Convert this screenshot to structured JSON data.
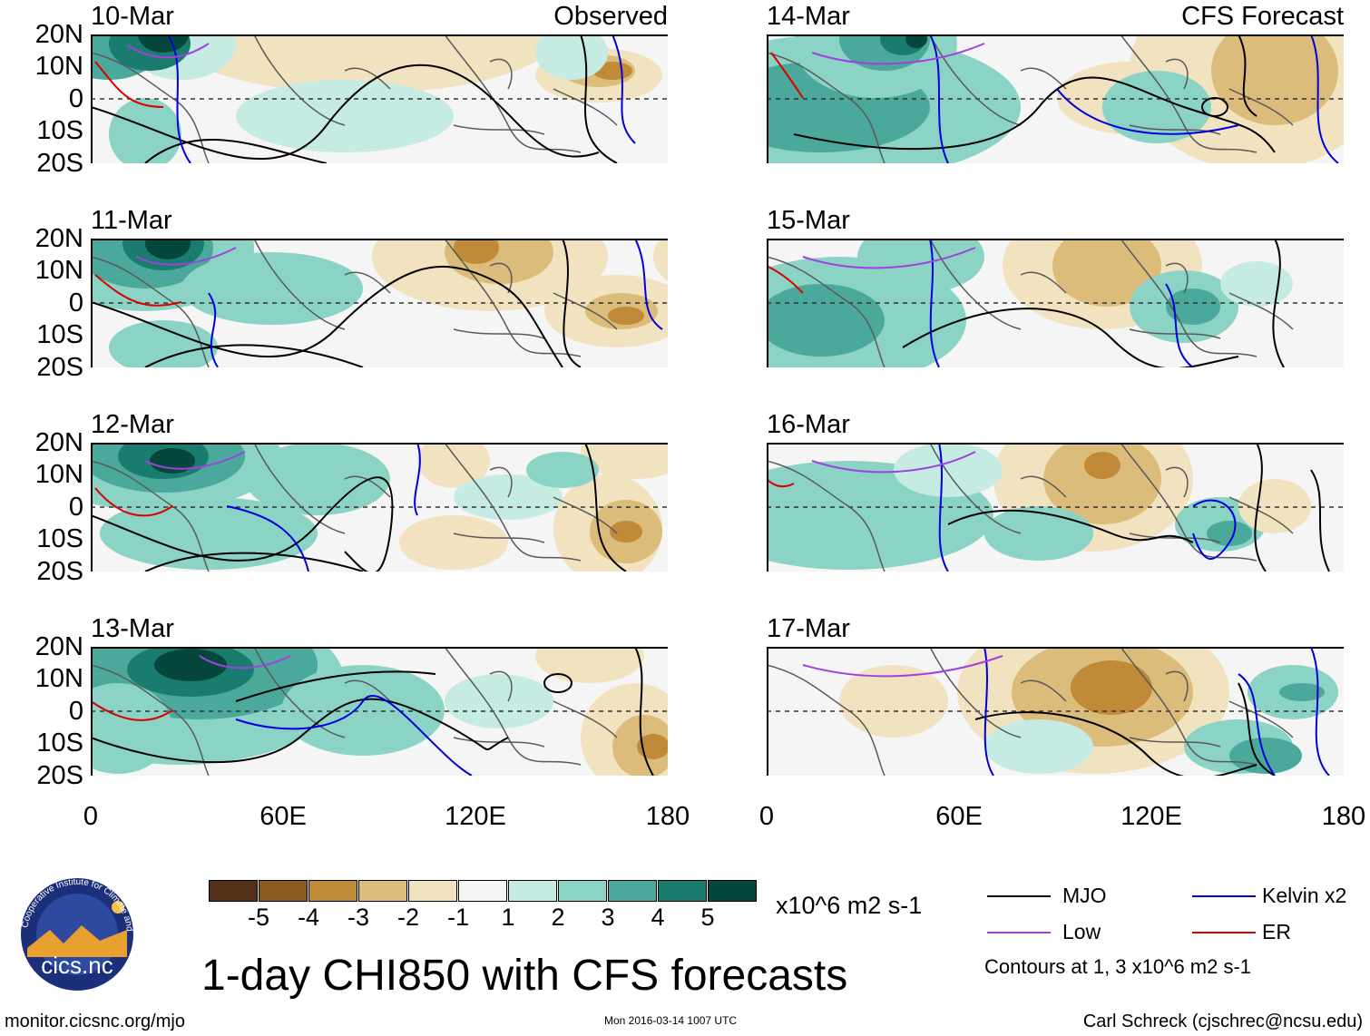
{
  "colors": {
    "mjo": "#000000",
    "kelvin": "#0000dd",
    "low": "#a040e0",
    "er": "#dd0000",
    "coast": "#5a5a5a",
    "equator": "#333333",
    "bins": [
      "#553018",
      "#8a5a1e",
      "#c08a38",
      "#dcbc7a",
      "#f1e2c0",
      "#f5f5f5",
      "#c6ebe3",
      "#8ad3c5",
      "#4aa99b",
      "#197c6e",
      "#05473d"
    ]
  },
  "panels": [
    {
      "date": "10-Mar",
      "corner": "Observed",
      "side": "left"
    },
    {
      "date": "11-Mar",
      "corner": "",
      "side": "left"
    },
    {
      "date": "12-Mar",
      "corner": "",
      "side": "left"
    },
    {
      "date": "13-Mar",
      "corner": "",
      "side": "left"
    },
    {
      "date": "14-Mar",
      "corner": "CFS Forecast",
      "side": "right"
    },
    {
      "date": "15-Mar",
      "corner": "",
      "side": "right"
    },
    {
      "date": "16-Mar",
      "corner": "",
      "side": "right"
    },
    {
      "date": "17-Mar",
      "corner": "",
      "side": "right"
    }
  ],
  "lat_labels": [
    "20N",
    "10N",
    "0",
    "10S",
    "20S"
  ],
  "lon_labels": [
    "0",
    "60E",
    "120E",
    "180"
  ],
  "colorbar": {
    "ticks": [
      "-5",
      "-4",
      "-3",
      "-2",
      "-1",
      "1",
      "2",
      "3",
      "4",
      "5"
    ],
    "units": "x10^6 m2 s-1"
  },
  "legend": {
    "mjo": "MJO",
    "kelvin": "Kelvin x2",
    "low": "Low",
    "er": "ER",
    "note": "Contours at 1, 3 x10^6 m2 s-1"
  },
  "title": "1-day CHI850 with CFS forecasts",
  "footer": {
    "url": "monitor.cicsnc.org/mjo",
    "timestamp": "Mon 2016-03-14 1007 UTC",
    "author": "Carl Schreck (cjschrec@ncsu.edu)"
  },
  "logo": {
    "text": "cics.nc",
    "ring_text": "Cooperative Institute for Climate and Satellites"
  }
}
